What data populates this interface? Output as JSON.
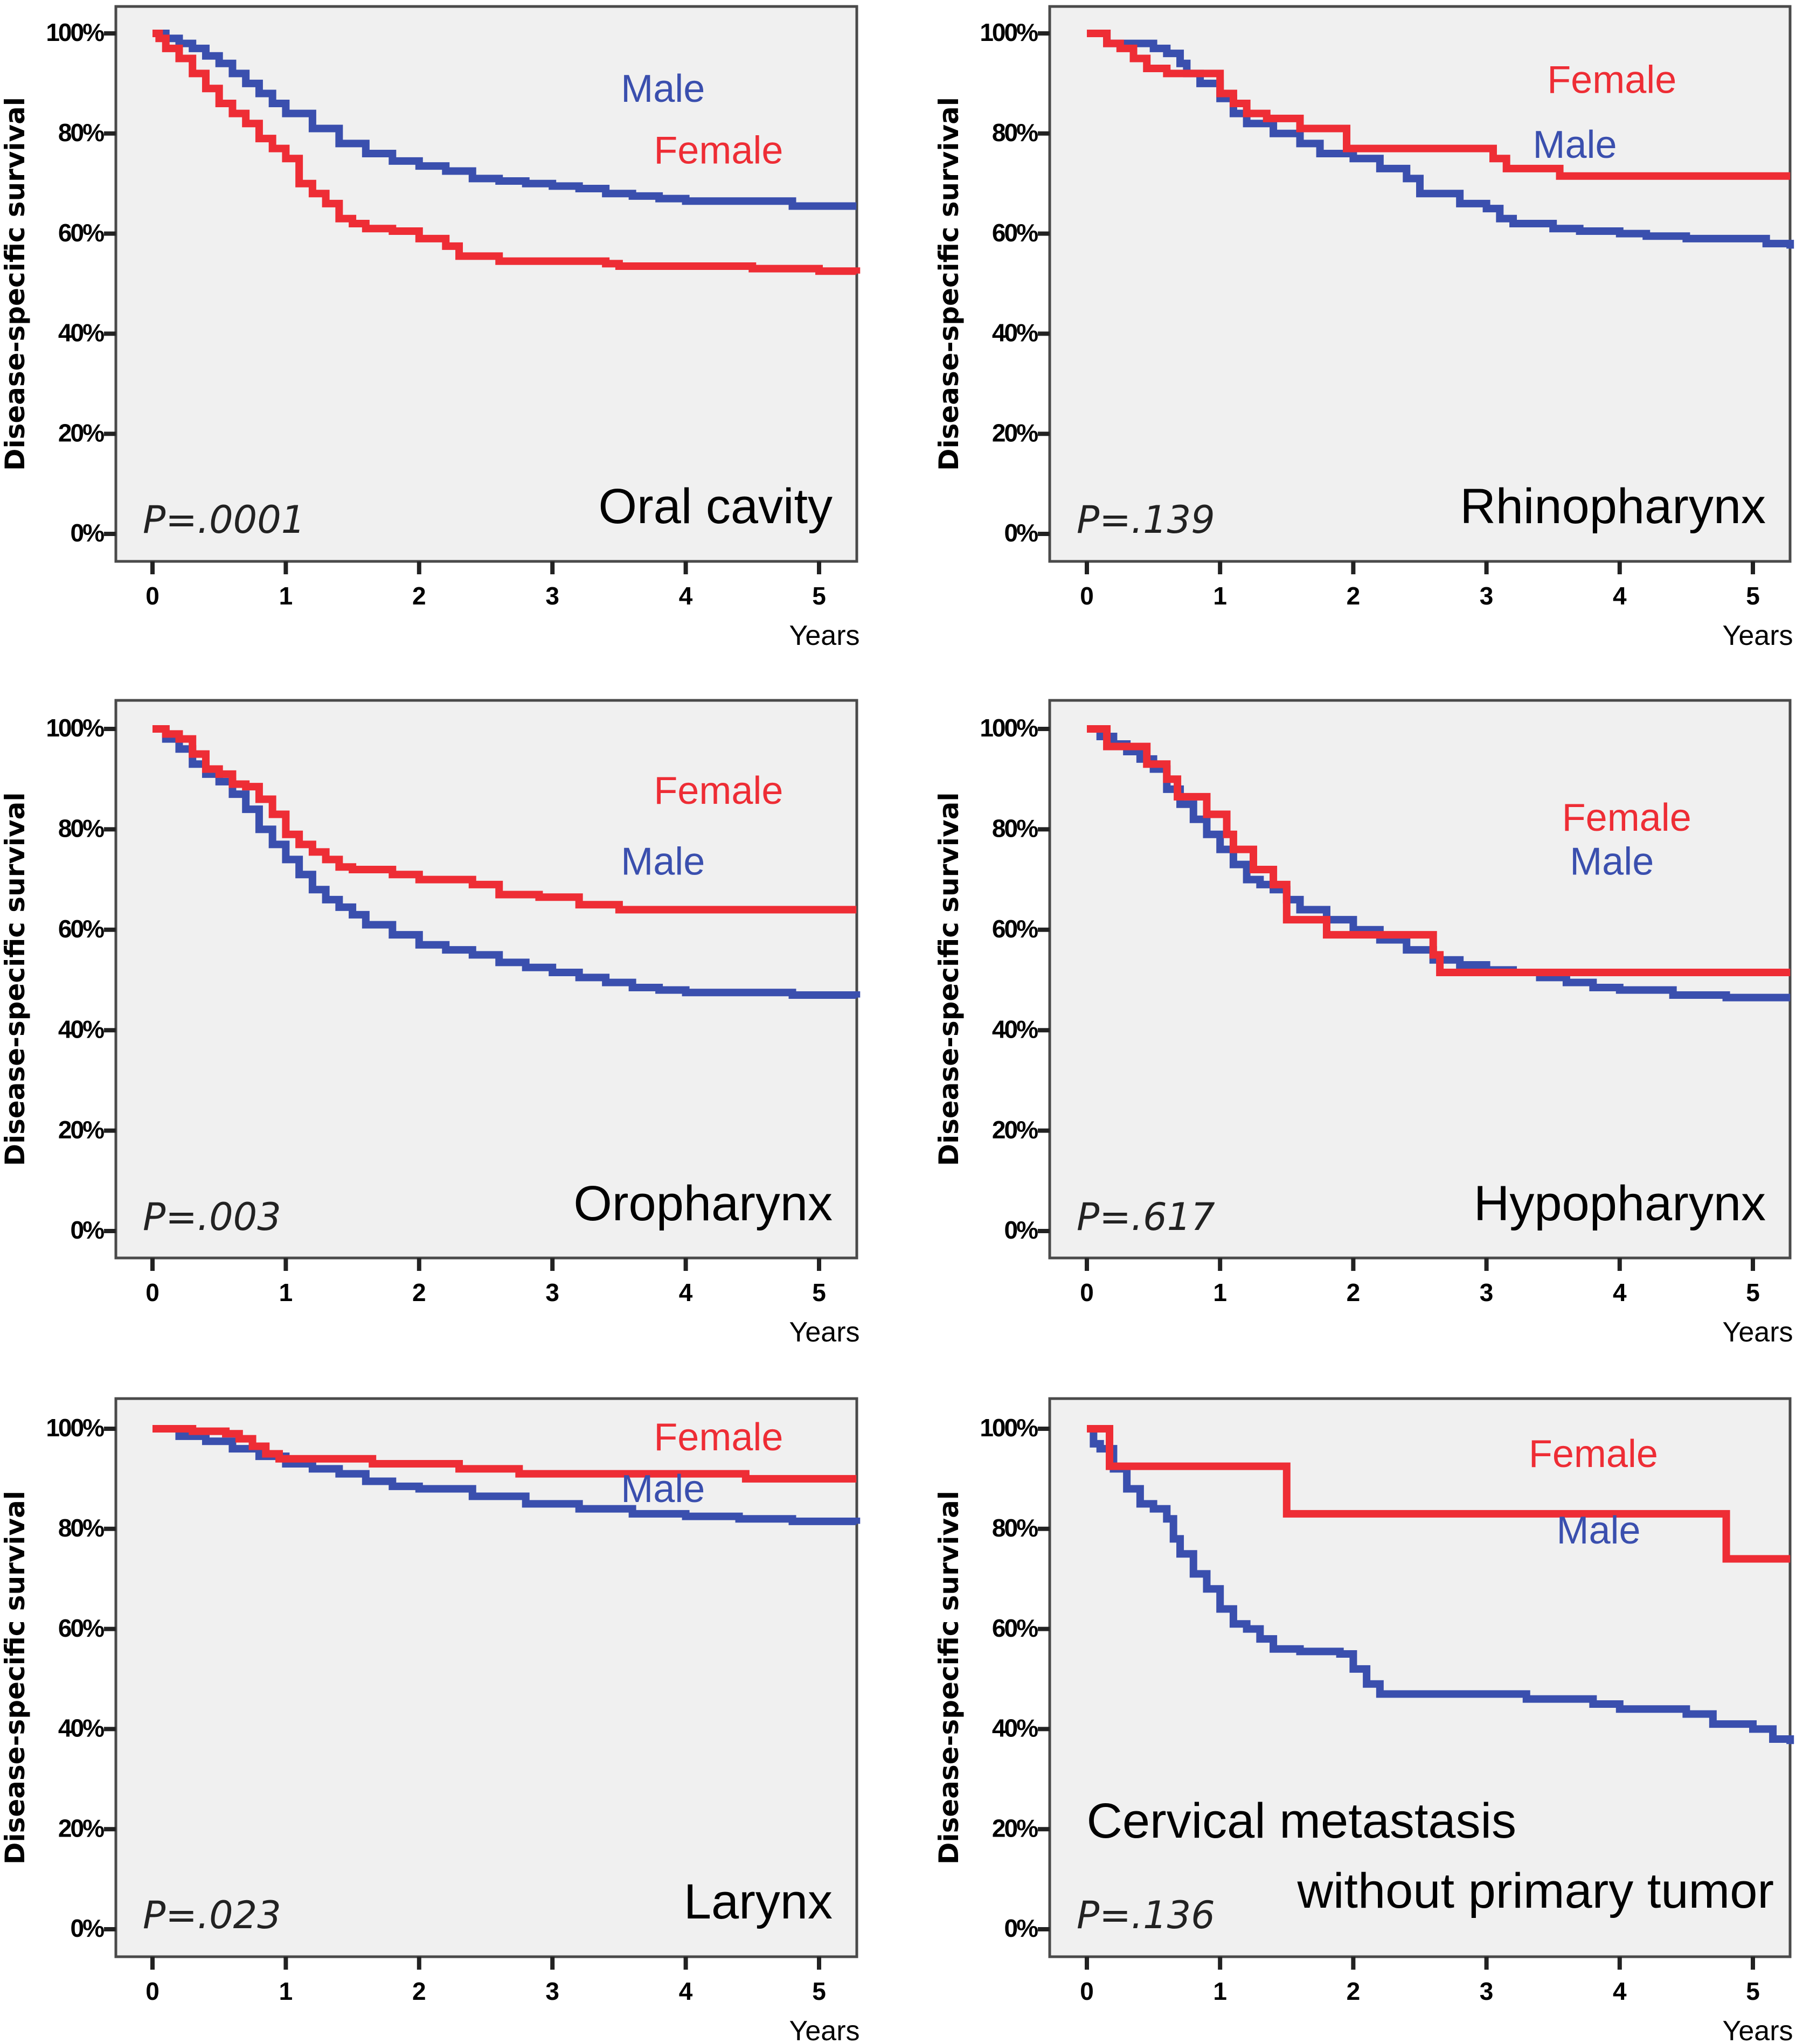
{
  "colors": {
    "male": "#3a4fae",
    "female": "#ee2d35",
    "plot_bg": "#f0f0f0"
  },
  "chart_data": [
    {
      "type": "line",
      "subtype": "kaplan-meier step",
      "title": "Oral cavity",
      "annotation": "P=.0001",
      "xlabel": "Years",
      "ylabel": "Disease-specific survival",
      "xticks": [
        "0",
        "1",
        "2",
        "3",
        "4",
        "5"
      ],
      "yticks": [
        "0%",
        "20%",
        "40%",
        "60%",
        "80%",
        "100%"
      ],
      "xlim": [
        0,
        5.28
      ],
      "ylim": [
        0,
        100
      ],
      "grid": false,
      "series": [
        {
          "name": "Male",
          "label": "Male",
          "x": [
            0,
            0.1,
            0.2,
            0.3,
            0.4,
            0.5,
            0.6,
            0.7,
            0.8,
            0.9,
            1.0,
            1.2,
            1.4,
            1.6,
            1.8,
            2.0,
            2.2,
            2.4,
            2.6,
            2.8,
            3.0,
            3.2,
            3.4,
            3.6,
            3.8,
            4.0,
            4.4,
            4.8,
            5.28
          ],
          "y": [
            100,
            99,
            98,
            97,
            95.5,
            94,
            92,
            90,
            88,
            86,
            84,
            81,
            78,
            76,
            74.5,
            73.5,
            72.5,
            71,
            70.5,
            70,
            69.5,
            69,
            68,
            67.5,
            67,
            66.5,
            66.5,
            65.5,
            65.5
          ]
        },
        {
          "name": "Female",
          "label": "Female",
          "x": [
            0,
            0.05,
            0.1,
            0.2,
            0.3,
            0.4,
            0.5,
            0.6,
            0.7,
            0.8,
            0.9,
            1.0,
            1.1,
            1.2,
            1.3,
            1.4,
            1.5,
            1.6,
            1.8,
            2.0,
            2.2,
            2.3,
            2.6,
            3.0,
            3.4,
            3.5,
            4.0,
            4.5,
            5.0,
            5.28
          ],
          "y": [
            100,
            99,
            97,
            95,
            92,
            89,
            86,
            84,
            82,
            79,
            77,
            75,
            70,
            68,
            66,
            63,
            62,
            61,
            60.5,
            59,
            57.5,
            55.5,
            54.5,
            54.5,
            54,
            53.5,
            53.5,
            53,
            52.5,
            52
          ]
        }
      ]
    },
    {
      "type": "line",
      "subtype": "kaplan-meier step",
      "title": "Rhinopharynx",
      "annotation": "P=.139",
      "xlabel": "Years",
      "ylabel": "Disease-specific survival",
      "xticks": [
        "0",
        "1",
        "2",
        "3",
        "4",
        "5"
      ],
      "yticks": [
        "0%",
        "20%",
        "40%",
        "60%",
        "80%",
        "100%"
      ],
      "xlim": [
        0,
        5.28
      ],
      "ylim": [
        0,
        100
      ],
      "grid": false,
      "series": [
        {
          "name": "Male",
          "label": "Male",
          "x": [
            0,
            0.15,
            0.3,
            0.5,
            0.6,
            0.7,
            0.75,
            0.85,
            1.0,
            1.1,
            1.2,
            1.4,
            1.6,
            1.75,
            2.0,
            2.2,
            2.4,
            2.5,
            2.8,
            3.0,
            3.1,
            3.2,
            3.5,
            3.7,
            4.0,
            4.2,
            4.5,
            5.0,
            5.1,
            5.28
          ],
          "y": [
            100,
            98,
            98,
            97,
            96,
            94,
            92,
            90,
            87,
            84,
            82,
            80,
            78,
            76,
            75,
            73,
            71,
            68,
            66,
            65,
            63,
            62,
            61,
            60.5,
            60,
            59.5,
            59,
            59,
            58,
            57
          ]
        },
        {
          "name": "Female",
          "label": "Female",
          "x": [
            0,
            0.15,
            0.25,
            0.35,
            0.45,
            0.6,
            0.9,
            1.0,
            1.1,
            1.2,
            1.35,
            1.6,
            1.95,
            2.05,
            2.95,
            3.05,
            3.15,
            3.55,
            5.28
          ],
          "y": [
            100,
            98,
            97,
            95,
            93,
            92,
            92,
            88,
            86,
            84,
            83,
            81,
            77,
            77,
            77,
            75,
            73,
            71.5,
            71.5
          ]
        }
      ]
    },
    {
      "type": "line",
      "subtype": "kaplan-meier step",
      "title": "Oropharynx",
      "annotation": "P=.003",
      "xlabel": "Years",
      "ylabel": "Disease-specific survival",
      "xticks": [
        "0",
        "1",
        "2",
        "3",
        "4",
        "5"
      ],
      "yticks": [
        "0%",
        "20%",
        "40%",
        "60%",
        "80%",
        "100%"
      ],
      "xlim": [
        0,
        5.28
      ],
      "ylim": [
        0,
        100
      ],
      "grid": false,
      "series": [
        {
          "name": "Male",
          "label": "Male",
          "x": [
            0,
            0.1,
            0.2,
            0.3,
            0.4,
            0.5,
            0.6,
            0.7,
            0.8,
            0.9,
            1.0,
            1.1,
            1.2,
            1.3,
            1.4,
            1.5,
            1.6,
            1.8,
            2.0,
            2.2,
            2.4,
            2.6,
            2.8,
            3.0,
            3.2,
            3.4,
            3.6,
            3.8,
            4.0,
            4.4,
            4.8,
            5.28
          ],
          "y": [
            100,
            98,
            96,
            93,
            91,
            89.5,
            87,
            84,
            80,
            77,
            74,
            71,
            68,
            66,
            64.5,
            63,
            61,
            59,
            57,
            56,
            55,
            53.5,
            52.5,
            51.5,
            50.5,
            49.5,
            48.5,
            48,
            47.5,
            47.5,
            47,
            46.5
          ]
        },
        {
          "name": "Female",
          "label": "Female",
          "x": [
            0,
            0.1,
            0.2,
            0.3,
            0.4,
            0.5,
            0.6,
            0.7,
            0.8,
            0.9,
            1.0,
            1.1,
            1.2,
            1.3,
            1.4,
            1.5,
            1.8,
            2.0,
            2.4,
            2.6,
            2.9,
            3.2,
            3.5,
            5.28
          ],
          "y": [
            100,
            99,
            98,
            95,
            92,
            91,
            89,
            88.5,
            86,
            83,
            79,
            77,
            75.5,
            74,
            72.5,
            72,
            71,
            70,
            69,
            67,
            66.5,
            65,
            64,
            64
          ]
        }
      ]
    },
    {
      "type": "line",
      "subtype": "kaplan-meier step",
      "title": "Hypopharynx",
      "annotation": "P=.617",
      "xlabel": "Years",
      "ylabel": "Disease-specific survival",
      "xticks": [
        "0",
        "1",
        "2",
        "3",
        "4",
        "5"
      ],
      "yticks": [
        "0%",
        "20%",
        "40%",
        "60%",
        "80%",
        "100%"
      ],
      "xlim": [
        0,
        5.28
      ],
      "ylim": [
        0,
        100
      ],
      "grid": false,
      "series": [
        {
          "name": "Male",
          "label": "Male",
          "x": [
            0,
            0.1,
            0.2,
            0.3,
            0.4,
            0.5,
            0.6,
            0.7,
            0.8,
            0.9,
            1.0,
            1.1,
            1.2,
            1.3,
            1.4,
            1.5,
            1.6,
            1.8,
            2.0,
            2.2,
            2.4,
            2.6,
            2.8,
            3.0,
            3.2,
            3.4,
            3.6,
            3.8,
            4.0,
            4.4,
            4.8,
            5.28
          ],
          "y": [
            100,
            98.5,
            97,
            95.5,
            94,
            92,
            88,
            85,
            82,
            79,
            76,
            73,
            70,
            69,
            68,
            66,
            64,
            62,
            60,
            58,
            56,
            54,
            53,
            52,
            51.5,
            50.5,
            49.5,
            48.5,
            48,
            47,
            46.5,
            46.5
          ]
        },
        {
          "name": "Female",
          "label": "Female",
          "x": [
            0,
            0.15,
            0.45,
            0.6,
            0.68,
            0.9,
            1.05,
            1.1,
            1.25,
            1.4,
            1.5,
            1.8,
            2.6,
            2.65,
            5.28
          ],
          "y": [
            100,
            96.5,
            93,
            90,
            86.5,
            83,
            79,
            76,
            72,
            69,
            62,
            59,
            55,
            51.5,
            51.5
          ]
        }
      ]
    },
    {
      "type": "line",
      "subtype": "kaplan-meier step",
      "title": "Larynx",
      "annotation": "P=.023",
      "xlabel": "Years",
      "ylabel": "Disease-specific survival",
      "xticks": [
        "0",
        "1",
        "2",
        "3",
        "4",
        "5"
      ],
      "yticks": [
        "0%",
        "20%",
        "40%",
        "60%",
        "80%",
        "100%"
      ],
      "xlim": [
        0,
        5.28
      ],
      "ylim": [
        0,
        100
      ],
      "grid": false,
      "series": [
        {
          "name": "Male",
          "label": "Male",
          "x": [
            0,
            0.2,
            0.4,
            0.6,
            0.8,
            1.0,
            1.2,
            1.4,
            1.6,
            1.8,
            2.0,
            2.4,
            2.8,
            3.2,
            3.6,
            4.0,
            4.4,
            4.8,
            5.28
          ],
          "y": [
            100,
            98.5,
            97.5,
            96,
            94.5,
            93,
            92,
            91,
            89.5,
            88.5,
            88,
            86.5,
            85,
            84,
            83,
            82.5,
            82,
            81.5,
            81
          ]
        },
        {
          "name": "Female",
          "label": "Female",
          "x": [
            0,
            0.3,
            0.55,
            0.65,
            0.75,
            0.85,
            0.95,
            1.65,
            2.3,
            2.75,
            4.45,
            5.28
          ],
          "y": [
            100,
            99.5,
            99,
            98,
            96.5,
            95,
            94,
            93,
            92,
            91,
            90,
            90
          ]
        }
      ]
    },
    {
      "type": "line",
      "subtype": "kaplan-meier step",
      "title": "Cervical metastasis without primary tumor",
      "title_lines": [
        "Cervical metastasis",
        "without primary tumor"
      ],
      "annotation": "P=.136",
      "xlabel": "Years",
      "ylabel": "Disease-specific survival",
      "xticks": [
        "0",
        "1",
        "2",
        "3",
        "4",
        "5"
      ],
      "yticks": [
        "0%",
        "20%",
        "40%",
        "60%",
        "80%",
        "100%"
      ],
      "xlim": [
        0,
        5.28
      ],
      "ylim": [
        0,
        100
      ],
      "grid": false,
      "series": [
        {
          "name": "Male",
          "label": "Male",
          "x": [
            0,
            0.05,
            0.1,
            0.2,
            0.3,
            0.4,
            0.5,
            0.6,
            0.65,
            0.7,
            0.8,
            0.9,
            1.0,
            1.1,
            1.2,
            1.3,
            1.4,
            1.6,
            1.9,
            2.0,
            2.1,
            2.2,
            3.0,
            3.3,
            3.8,
            4.0,
            4.5,
            4.7,
            5.0,
            5.15,
            5.28
          ],
          "y": [
            100,
            97,
            96,
            92,
            88,
            85,
            84,
            82,
            78,
            75,
            71,
            68,
            64,
            61,
            60,
            58,
            56,
            55.5,
            55,
            52,
            49,
            47,
            47,
            46,
            45,
            44,
            43,
            41,
            40,
            38,
            37
          ]
        },
        {
          "name": "Female",
          "label": "Female",
          "x": [
            0,
            0.17,
            1.5,
            4.8,
            5.28
          ],
          "y": [
            100,
            92.5,
            83,
            74,
            74
          ]
        }
      ]
    }
  ]
}
